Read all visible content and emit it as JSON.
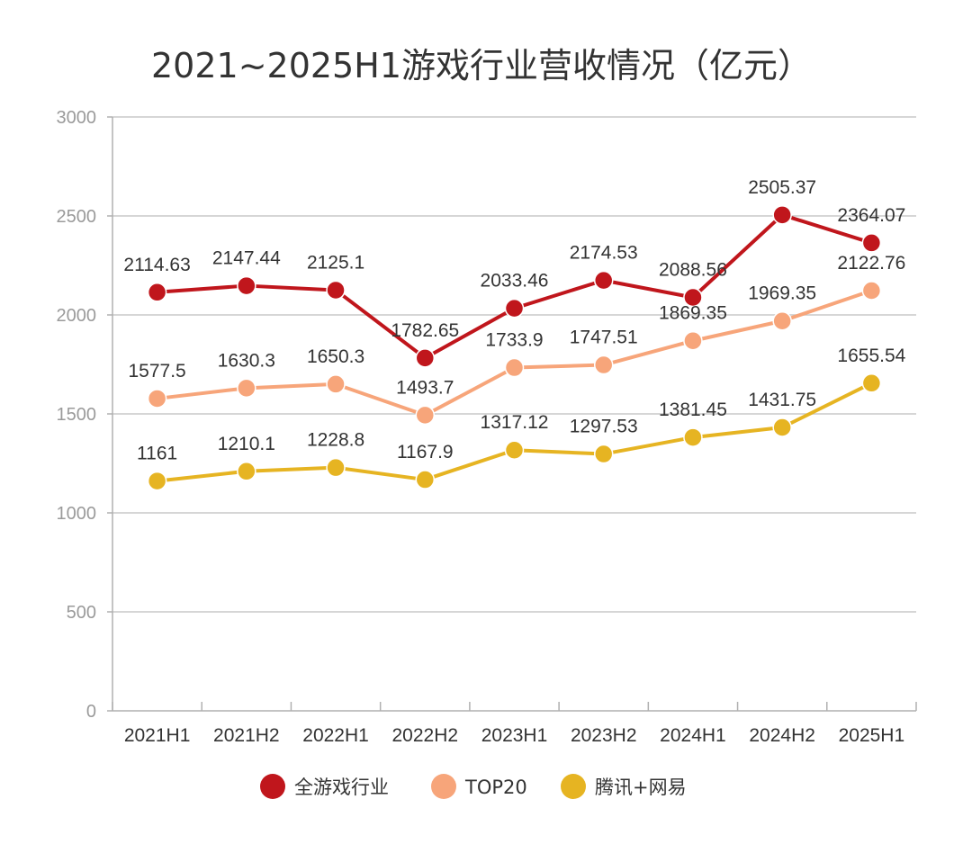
{
  "chart_data": {
    "type": "line",
    "title": "2021~2025H1游戏行业营收情况（亿元）",
    "categories": [
      "2021H1",
      "2021H2",
      "2022H1",
      "2022H2",
      "2023H1",
      "2023H2",
      "2024H1",
      "2024H2",
      "2025H1"
    ],
    "series": [
      {
        "name": "全游戏行业",
        "color": "#c0161c",
        "values": [
          2114.63,
          2147.44,
          2125.1,
          1782.65,
          2033.46,
          2174.53,
          2088.56,
          2505.37,
          2364.07
        ],
        "labels": [
          "2114.63",
          "2147.44",
          "2125.1",
          "1782.65",
          "2033.46",
          "2174.53",
          "2088.56",
          "2505.37",
          "2364.07"
        ]
      },
      {
        "name": "TOP20",
        "color": "#f7a57a",
        "values": [
          1577.5,
          1630.3,
          1650.3,
          1493.7,
          1733.9,
          1747.51,
          1869.35,
          1969.35,
          2122.76
        ],
        "labels": [
          "1577.5",
          "1630.3",
          "1650.3",
          "1493.7",
          "1733.9",
          "1747.51",
          "1869.35",
          "1969.35",
          "2122.76"
        ]
      },
      {
        "name": "腾讯+网易",
        "color": "#e6b422",
        "values": [
          1161,
          1210.1,
          1228.8,
          1167.9,
          1317.12,
          1297.53,
          1381.45,
          1431.75,
          1655.54
        ],
        "labels": [
          "1161",
          "1210.1",
          "1228.8",
          "1167.9",
          "1317.12",
          "1297.53",
          "1381.45",
          "1431.75",
          "1655.54"
        ]
      }
    ],
    "y_ticks": [
      "0",
      "500",
      "1000",
      "1500",
      "2000",
      "2500",
      "3000"
    ],
    "ylim": [
      0,
      3000
    ],
    "grid": true,
    "legend_position": "bottom"
  }
}
